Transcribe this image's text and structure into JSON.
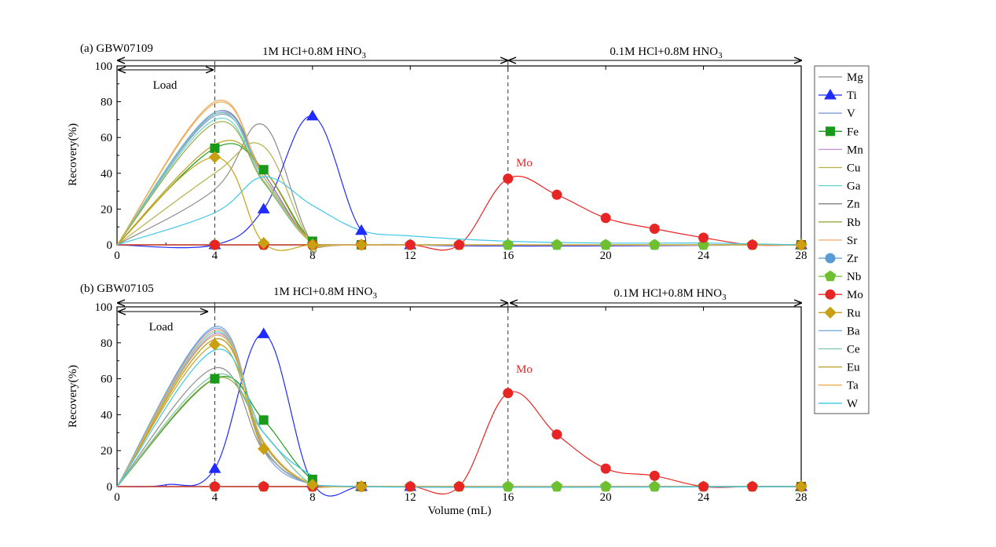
{
  "figure": {
    "xlabel": "Volume (mL)",
    "ylabel": "Recovery(%)",
    "panel_a_title": "(a) GBW07109",
    "panel_b_title": "(b) GBW07105",
    "section1_label": "1M HCl+0.8M HNO",
    "section1_sub": "3",
    "section2_label": "0.1M HCl+0.8M HNO",
    "section2_sub": "3",
    "load_label": "Load",
    "mo_label": "Mo"
  },
  "legend": {
    "items": [
      {
        "label": "Mg",
        "color": "#8c8c8c",
        "marker": "none"
      },
      {
        "label": "Ti",
        "color": "#1f2bff",
        "marker": "triangle"
      },
      {
        "label": "V",
        "color": "#7f9bd9",
        "marker": "none"
      },
      {
        "label": "Fe",
        "color": "#1a9a1a",
        "marker": "square"
      },
      {
        "label": "Mn",
        "color": "#c08fd6",
        "marker": "none"
      },
      {
        "label": "Cu",
        "color": "#b5b04a",
        "marker": "none"
      },
      {
        "label": "Ga",
        "color": "#5fd6d0",
        "marker": "none"
      },
      {
        "label": "Zn",
        "color": "#8a7e90",
        "marker": "none"
      },
      {
        "label": "Rb",
        "color": "#9aa83d",
        "marker": "none"
      },
      {
        "label": "Sr",
        "color": "#f0a86a",
        "marker": "none"
      },
      {
        "label": "Zr",
        "color": "#5b9bd5",
        "marker": "circle"
      },
      {
        "label": "Nb",
        "color": "#6fc02f",
        "marker": "pentagon"
      },
      {
        "label": "Mo",
        "color": "#e82525",
        "marker": "circle"
      },
      {
        "label": "Ru",
        "color": "#c9a012",
        "marker": "diamond"
      },
      {
        "label": "Ba",
        "color": "#6fa8dc",
        "marker": "none"
      },
      {
        "label": "Ce",
        "color": "#78c8a8",
        "marker": "none"
      },
      {
        "label": "Eu",
        "color": "#b8a020",
        "marker": "none"
      },
      {
        "label": "Ta",
        "color": "#e8b050",
        "marker": "none"
      },
      {
        "label": "W",
        "color": "#3fc8e8",
        "marker": "none"
      }
    ]
  },
  "chart_data": [
    {
      "type": "line",
      "title": "(a) GBW07109",
      "xlabel": "Volume (mL)",
      "ylabel": "Recovery(%)",
      "xlim": [
        0,
        28
      ],
      "ylim": [
        0,
        100
      ],
      "xticks": [
        0,
        4,
        8,
        12,
        16,
        20,
        24,
        28
      ],
      "yticks": [
        0,
        20,
        40,
        60,
        80,
        100
      ],
      "vlines": [
        4,
        16
      ],
      "series": [
        {
          "name": "Mg",
          "x": [
            0,
            4,
            6,
            8,
            10,
            28
          ],
          "values": [
            0,
            31,
            67,
            1,
            0,
            0
          ]
        },
        {
          "name": "Ti",
          "x": [
            0,
            4,
            6,
            8,
            10,
            12,
            28
          ],
          "values": [
            0,
            0,
            20,
            72,
            8,
            0,
            0
          ]
        },
        {
          "name": "V",
          "x": [
            0,
            4,
            6,
            8,
            10,
            28
          ],
          "values": [
            0,
            72,
            38,
            1,
            0,
            0
          ]
        },
        {
          "name": "Fe",
          "x": [
            0,
            4,
            6,
            8,
            10,
            28
          ],
          "values": [
            0,
            54,
            42,
            2,
            0,
            0
          ]
        },
        {
          "name": "Mn",
          "x": [
            0,
            4,
            6,
            8,
            10,
            28
          ],
          "values": [
            0,
            73,
            40,
            1,
            0,
            0
          ]
        },
        {
          "name": "Cu",
          "x": [
            0,
            4,
            6,
            8,
            10,
            28
          ],
          "values": [
            0,
            40,
            55,
            1,
            0,
            0
          ]
        },
        {
          "name": "Ga",
          "x": [
            0,
            4,
            6,
            8,
            10,
            28
          ],
          "values": [
            0,
            70,
            35,
            1,
            0,
            0
          ]
        },
        {
          "name": "Zn",
          "x": [
            0,
            4,
            6,
            8,
            10,
            28
          ],
          "values": [
            0,
            74,
            40,
            1,
            0,
            0
          ]
        },
        {
          "name": "Rb",
          "x": [
            0,
            4,
            6,
            8,
            10,
            28
          ],
          "values": [
            0,
            68,
            35,
            1,
            0,
            0
          ]
        },
        {
          "name": "Sr",
          "x": [
            0,
            4,
            6,
            8,
            10,
            28
          ],
          "values": [
            0,
            80,
            38,
            1,
            0,
            0
          ]
        },
        {
          "name": "Zr",
          "x": [
            0,
            4,
            8,
            12,
            16,
            20,
            24,
            28
          ],
          "values": [
            0,
            0,
            0,
            0,
            0,
            0,
            0,
            0
          ]
        },
        {
          "name": "Nb",
          "x": [
            0,
            4,
            8,
            12,
            16,
            20,
            24,
            28
          ],
          "values": [
            0,
            0,
            0,
            0,
            0,
            0,
            0,
            0
          ]
        },
        {
          "name": "Mo",
          "x": [
            0,
            4,
            8,
            10,
            12,
            14,
            16,
            18,
            20,
            22,
            24,
            26,
            28
          ],
          "values": [
            0,
            0,
            0,
            0,
            0,
            0,
            37,
            28,
            15,
            9,
            4,
            0,
            0
          ]
        },
        {
          "name": "Ru",
          "x": [
            0,
            4,
            6,
            8,
            10,
            28
          ],
          "values": [
            0,
            49,
            1,
            0,
            0,
            0
          ]
        },
        {
          "name": "Ba",
          "x": [
            0,
            4,
            6,
            8,
            10,
            28
          ],
          "values": [
            0,
            74,
            38,
            1,
            0,
            0
          ]
        },
        {
          "name": "Ce",
          "x": [
            0,
            4,
            6,
            8,
            10,
            28
          ],
          "values": [
            0,
            73,
            36,
            1,
            0,
            0
          ]
        },
        {
          "name": "Eu",
          "x": [
            0,
            4,
            6,
            8,
            10,
            28
          ],
          "values": [
            0,
            56,
            42,
            1,
            0,
            0
          ]
        },
        {
          "name": "Ta",
          "x": [
            0,
            4,
            6,
            8,
            10,
            28
          ],
          "values": [
            0,
            79,
            38,
            1,
            0,
            0
          ]
        },
        {
          "name": "W",
          "x": [
            0,
            4,
            6,
            8,
            10,
            12,
            16,
            20,
            24,
            28
          ],
          "values": [
            0,
            18,
            38,
            22,
            8,
            5,
            2,
            1,
            1,
            0
          ]
        }
      ]
    },
    {
      "type": "line",
      "title": "(b) GBW07105",
      "xlabel": "Volume (mL)",
      "ylabel": "Recovery(%)",
      "xlim": [
        0,
        28
      ],
      "ylim": [
        0,
        100
      ],
      "xticks": [
        0,
        4,
        8,
        12,
        16,
        20,
        24,
        28
      ],
      "yticks": [
        0,
        20,
        40,
        60,
        80,
        100
      ],
      "vlines": [
        4,
        16
      ],
      "series": [
        {
          "name": "Mg",
          "x": [
            0,
            4,
            6,
            8,
            10,
            28
          ],
          "values": [
            0,
            66,
            20,
            1,
            0,
            0
          ]
        },
        {
          "name": "Ti",
          "x": [
            0,
            2,
            4,
            6,
            8,
            10,
            12,
            28
          ],
          "values": [
            0,
            1,
            10,
            85,
            2,
            0,
            0,
            0
          ]
        },
        {
          "name": "V",
          "x": [
            0,
            4,
            6,
            8,
            10,
            28
          ],
          "values": [
            0,
            88,
            20,
            1,
            0,
            0
          ]
        },
        {
          "name": "Fe",
          "x": [
            0,
            4,
            6,
            8,
            10,
            28
          ],
          "values": [
            0,
            60,
            37,
            4,
            0,
            0
          ]
        },
        {
          "name": "Mn",
          "x": [
            0,
            4,
            6,
            8,
            10,
            28
          ],
          "values": [
            0,
            85,
            25,
            1,
            0,
            0
          ]
        },
        {
          "name": "Cu",
          "x": [
            0,
            4,
            6,
            8,
            10,
            28
          ],
          "values": [
            0,
            82,
            25,
            1,
            0,
            0
          ]
        },
        {
          "name": "Ga",
          "x": [
            0,
            4,
            6,
            8,
            10,
            28
          ],
          "values": [
            0,
            86,
            22,
            1,
            0,
            0
          ]
        },
        {
          "name": "Zn",
          "x": [
            0,
            4,
            6,
            8,
            10,
            28
          ],
          "values": [
            0,
            84,
            24,
            1,
            0,
            0
          ]
        },
        {
          "name": "Rb",
          "x": [
            0,
            4,
            6,
            8,
            10,
            28
          ],
          "values": [
            0,
            60,
            30,
            1,
            0,
            0
          ]
        },
        {
          "name": "Sr",
          "x": [
            0,
            4,
            6,
            8,
            10,
            28
          ],
          "values": [
            0,
            87,
            22,
            1,
            0,
            0
          ]
        },
        {
          "name": "Zr",
          "x": [
            0,
            4,
            8,
            12,
            16,
            20,
            24,
            28
          ],
          "values": [
            0,
            0,
            0,
            0,
            0,
            0,
            0,
            0
          ]
        },
        {
          "name": "Nb",
          "x": [
            0,
            4,
            8,
            12,
            16,
            20,
            24,
            28
          ],
          "values": [
            0,
            0,
            0,
            0,
            0,
            0,
            0,
            0
          ]
        },
        {
          "name": "Mo",
          "x": [
            0,
            4,
            6,
            8,
            10,
            12,
            14,
            16,
            18,
            20,
            22,
            24,
            26,
            28
          ],
          "values": [
            0,
            0,
            0,
            0,
            0,
            0,
            0,
            52,
            29,
            10,
            6,
            0,
            0,
            0
          ]
        },
        {
          "name": "Ru",
          "x": [
            0,
            4,
            6,
            8,
            10,
            28
          ],
          "values": [
            0,
            79,
            21,
            1,
            0,
            0
          ]
        },
        {
          "name": "Ba",
          "x": [
            0,
            4,
            6,
            8,
            10,
            28
          ],
          "values": [
            0,
            89,
            22,
            1,
            0,
            0
          ]
        },
        {
          "name": "Ce",
          "x": [
            0,
            4,
            6,
            8,
            10,
            28
          ],
          "values": [
            0,
            62,
            30,
            1,
            0,
            0
          ]
        },
        {
          "name": "Eu",
          "x": [
            0,
            4,
            6,
            8,
            10,
            28
          ],
          "values": [
            0,
            82,
            24,
            1,
            0,
            0
          ]
        },
        {
          "name": "Ta",
          "x": [
            0,
            4,
            6,
            8,
            10,
            28
          ],
          "values": [
            0,
            84,
            25,
            1,
            0,
            0
          ]
        },
        {
          "name": "W",
          "x": [
            0,
            4,
            6,
            8,
            10,
            28
          ],
          "values": [
            0,
            76,
            30,
            6,
            0,
            0
          ]
        }
      ]
    }
  ]
}
